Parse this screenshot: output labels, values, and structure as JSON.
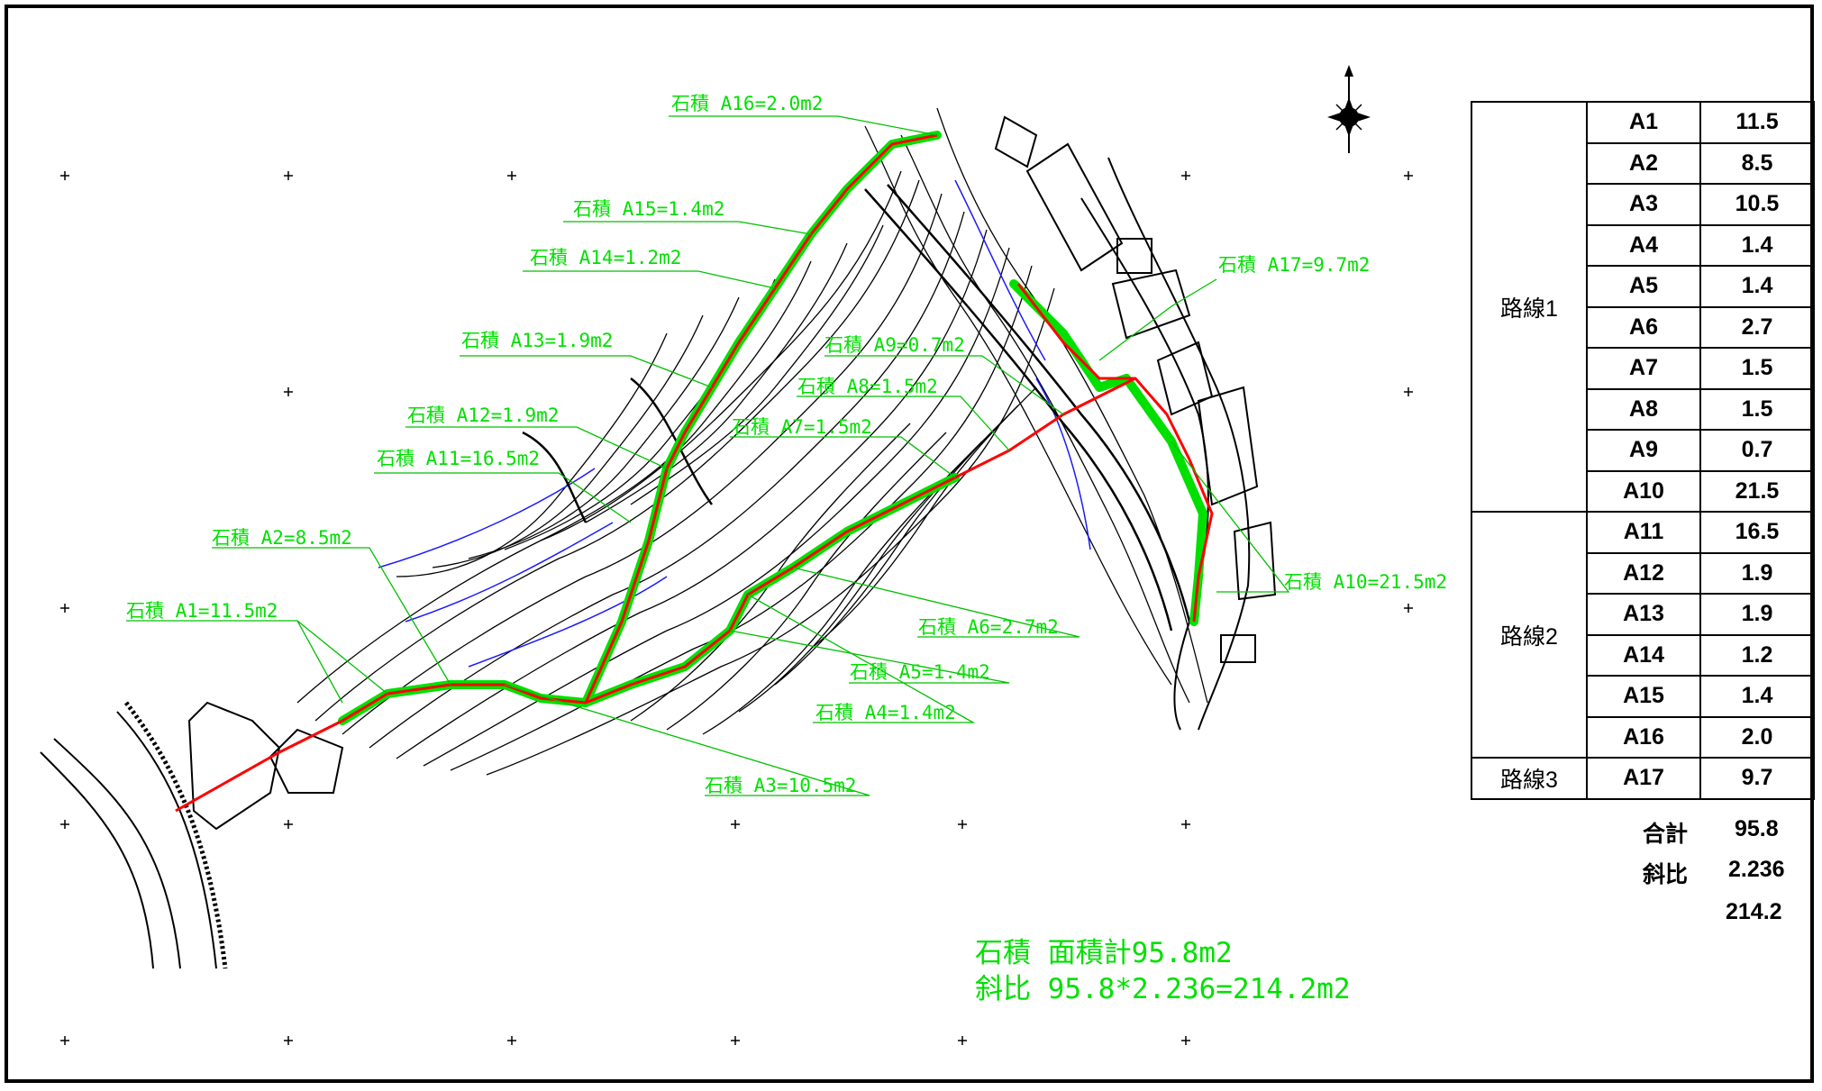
{
  "callouts": [
    {
      "id": "A1",
      "text": "石積 A1=11.5m2"
    },
    {
      "id": "A2",
      "text": "石積 A2=8.5m2"
    },
    {
      "id": "A3",
      "text": "石積 A3=10.5m2"
    },
    {
      "id": "A4",
      "text": "石積 A4=1.4m2"
    },
    {
      "id": "A5",
      "text": "石積 A5=1.4m2"
    },
    {
      "id": "A6",
      "text": "石積 A6=2.7m2"
    },
    {
      "id": "A7",
      "text": "石積 A7=1.5m2"
    },
    {
      "id": "A8",
      "text": "石積 A8=1.5m2"
    },
    {
      "id": "A9",
      "text": "石積 A9=0.7m2"
    },
    {
      "id": "A10",
      "text": "石積 A10=21.5m2"
    },
    {
      "id": "A11",
      "text": "石積 A11=16.5m2"
    },
    {
      "id": "A12",
      "text": "石積 A12=1.9m2"
    },
    {
      "id": "A13",
      "text": "石積 A13=1.9m2"
    },
    {
      "id": "A14",
      "text": "石積 A14=1.2m2"
    },
    {
      "id": "A15",
      "text": "石積 A15=1.4m2"
    },
    {
      "id": "A16",
      "text": "石積 A16=2.0m2"
    },
    {
      "id": "A17",
      "text": "石積 A17=9.7m2"
    }
  ],
  "summary_note": {
    "line1": "石積 面積計95.8m2",
    "line2": "斜比  95.8*2.236=214.2m2"
  },
  "table": {
    "routes": [
      {
        "name": "路線1",
        "rows": [
          {
            "label": "A1",
            "value": "11.5"
          },
          {
            "label": "A2",
            "value": "8.5"
          },
          {
            "label": "A3",
            "value": "10.5"
          },
          {
            "label": "A4",
            "value": "1.4"
          },
          {
            "label": "A5",
            "value": "1.4"
          },
          {
            "label": "A6",
            "value": "2.7"
          },
          {
            "label": "A7",
            "value": "1.5"
          },
          {
            "label": "A8",
            "value": "1.5"
          },
          {
            "label": "A9",
            "value": "0.7"
          },
          {
            "label": "A10",
            "value": "21.5"
          }
        ]
      },
      {
        "name": "路線2",
        "rows": [
          {
            "label": "A11",
            "value": "16.5"
          },
          {
            "label": "A12",
            "value": "1.9"
          },
          {
            "label": "A13",
            "value": "1.9"
          },
          {
            "label": "A14",
            "value": "1.2"
          },
          {
            "label": "A15",
            "value": "1.4"
          },
          {
            "label": "A16",
            "value": "2.0"
          }
        ]
      },
      {
        "name": "路線3",
        "rows": [
          {
            "label": "A17",
            "value": "9.7"
          }
        ]
      }
    ],
    "total_label": "合計",
    "total_value": "95.8",
    "ratio_label": "斜比",
    "ratio_value": "2.236",
    "slope_area": "214.2"
  },
  "colors": {
    "wall_line": "#ff0000",
    "wall_band": "#00e000",
    "contour": "#000000",
    "water_contour": "#1a1aff",
    "frame": "#000000"
  },
  "icons": [
    "north-arrow-icon",
    "registration-cross-icon"
  ]
}
